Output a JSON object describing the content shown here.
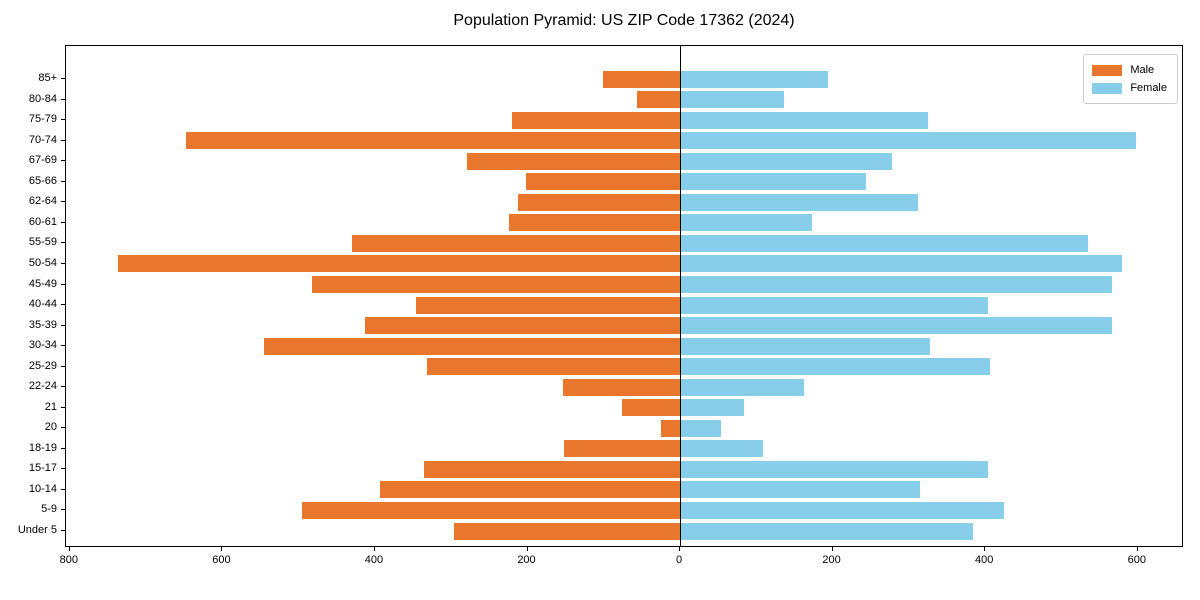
{
  "title": "Population Pyramid: US ZIP Code 17362 (2024)",
  "legend": {
    "male_label": "Male",
    "female_label": "Female"
  },
  "colors": {
    "male": "#e8762d",
    "female": "#87ceeb",
    "axis": "#000000",
    "legend_border": "#cccccc",
    "background": "#ffffff"
  },
  "icons": {
    "male_swatch": "orange-rect-swatch-icon",
    "female_swatch": "blue-rect-swatch-icon"
  },
  "chart_data": {
    "type": "bar",
    "subtype": "population-pyramid",
    "orientation": "horizontal",
    "title": "Population Pyramid: US ZIP Code 17362 (2024)",
    "xlabel": "",
    "ylabel": "",
    "grid": false,
    "legend_position": "upper right",
    "categories": [
      "85+",
      "80-84",
      "75-79",
      "70-74",
      "67-69",
      "65-66",
      "62-64",
      "60-61",
      "55-59",
      "50-54",
      "45-49",
      "40-44",
      "35-39",
      "30-34",
      "25-29",
      "22-24",
      "21",
      "20",
      "18-19",
      "15-17",
      "10-14",
      "5-9",
      "Under 5"
    ],
    "series": [
      {
        "name": "Male",
        "direction": "left",
        "values": [
          101,
          56,
          221,
          648,
          280,
          202,
          213,
          224,
          430,
          737,
          482,
          346,
          413,
          545,
          332,
          154,
          76,
          25,
          152,
          336,
          393,
          496,
          297
        ]
      },
      {
        "name": "Female",
        "direction": "right",
        "values": [
          193,
          135,
          324,
          596,
          277,
          242,
          310,
          172,
          533,
          578,
          565,
          402,
          565,
          326,
          405,
          161,
          82,
          53,
          108,
          402,
          313,
          423,
          383
        ]
      }
    ],
    "xlim": [
      -805,
      658
    ],
    "xticks": [
      -800,
      -600,
      -400,
      -200,
      0,
      200,
      400,
      600
    ],
    "xtick_labels": [
      "800",
      "600",
      "400",
      "200",
      "0",
      "200",
      "400",
      "600"
    ]
  }
}
